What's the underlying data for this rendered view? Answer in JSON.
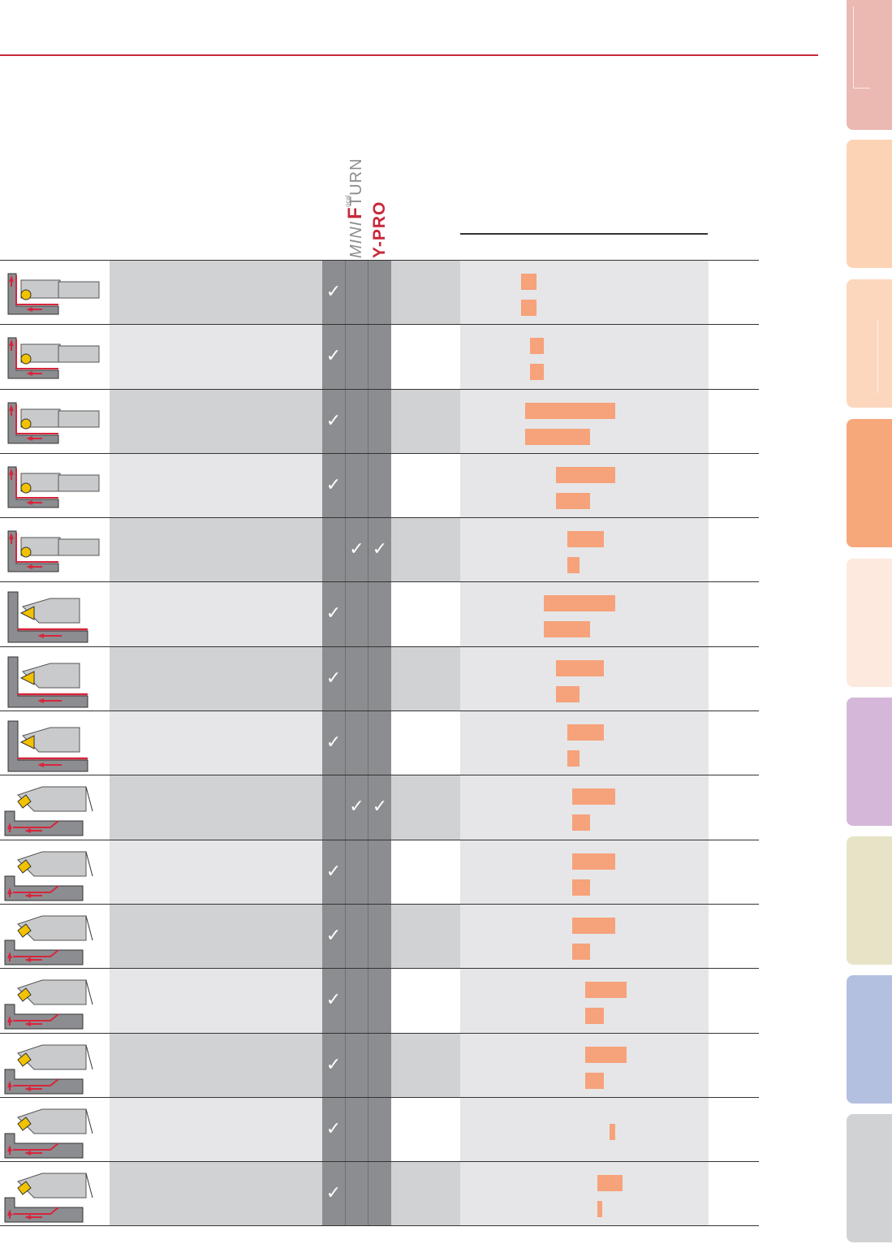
{
  "header": {
    "logo_mini": "MINI",
    "logo_f": "F",
    "logo_turn": "TURN",
    "logo_small": "ocal",
    "logo_ypro": "Y-PRO"
  },
  "colors": {
    "accent_line": "#c8283a",
    "bar": "#f6a27a",
    "check_column": "#8c8d90",
    "check": "#ffffff",
    "row_shade_dark": "#d1d2d4",
    "row_shade_light": "#e6e6e8",
    "profile_red": "#d7263d"
  },
  "check_glyph": "✓",
  "rows": [
    {
      "icon": "corner-boring-tool-icon",
      "checks": [
        true,
        false,
        false
      ],
      "bars": [
        {
          "start": 0.245,
          "end": 0.308
        },
        {
          "start": 0.245,
          "end": 0.308
        }
      ]
    },
    {
      "icon": "corner-boring-tool-icon",
      "checks": [
        true,
        false,
        false
      ],
      "bars": [
        {
          "start": 0.28,
          "end": 0.337
        },
        {
          "start": 0.28,
          "end": 0.337
        }
      ]
    },
    {
      "icon": "corner-boring-tool-icon",
      "checks": [
        true,
        false,
        false
      ],
      "bars": [
        {
          "start": 0.262,
          "end": 0.624
        },
        {
          "start": 0.262,
          "end": 0.523
        }
      ]
    },
    {
      "icon": "corner-boring-tool-icon",
      "checks": [
        true,
        false,
        false
      ],
      "bars": [
        {
          "start": 0.386,
          "end": 0.624
        },
        {
          "start": 0.386,
          "end": 0.523
        }
      ]
    },
    {
      "icon": "corner-boring-tool-icon",
      "checks": [
        false,
        true,
        true
      ],
      "bars": [
        {
          "start": 0.431,
          "end": 0.578
        },
        {
          "start": 0.431,
          "end": 0.48
        }
      ]
    },
    {
      "icon": "bore-turning-tool-icon",
      "checks": [
        true,
        false,
        false
      ],
      "bars": [
        {
          "start": 0.337,
          "end": 0.624
        },
        {
          "start": 0.337,
          "end": 0.523
        }
      ]
    },
    {
      "icon": "bore-turning-tool-icon",
      "checks": [
        true,
        false,
        false
      ],
      "bars": [
        {
          "start": 0.386,
          "end": 0.578
        },
        {
          "start": 0.386,
          "end": 0.48
        }
      ]
    },
    {
      "icon": "bore-turning-tool-icon",
      "checks": [
        true,
        false,
        false
      ],
      "bars": [
        {
          "start": 0.431,
          "end": 0.578
        },
        {
          "start": 0.431,
          "end": 0.48
        }
      ]
    },
    {
      "icon": "profile-boring-tool-icon",
      "checks": [
        false,
        true,
        true
      ],
      "bars": [
        {
          "start": 0.451,
          "end": 0.624
        },
        {
          "start": 0.451,
          "end": 0.523
        }
      ]
    },
    {
      "icon": "profile-boring-tool-icon",
      "checks": [
        true,
        false,
        false
      ],
      "bars": [
        {
          "start": 0.451,
          "end": 0.624
        },
        {
          "start": 0.451,
          "end": 0.523
        }
      ]
    },
    {
      "icon": "profile-boring-tool-icon",
      "checks": [
        true,
        false,
        false
      ],
      "bars": [
        {
          "start": 0.451,
          "end": 0.624
        },
        {
          "start": 0.451,
          "end": 0.523
        }
      ]
    },
    {
      "icon": "profile-boring-tool-icon",
      "checks": [
        true,
        false,
        false
      ],
      "bars": [
        {
          "start": 0.503,
          "end": 0.67
        },
        {
          "start": 0.503,
          "end": 0.578
        }
      ]
    },
    {
      "icon": "profile-boring-tool-icon",
      "checks": [
        true,
        false,
        false
      ],
      "bars": [
        {
          "start": 0.503,
          "end": 0.67
        },
        {
          "start": 0.503,
          "end": 0.578
        }
      ]
    },
    {
      "icon": "profile-boring-tool-icon",
      "checks": [
        true,
        false,
        false
      ],
      "bars": [
        {
          "start": 0.601,
          "end": 0.624
        }
      ]
    },
    {
      "icon": "profile-boring-tool-icon",
      "checks": [
        true,
        false,
        false
      ],
      "bars": [
        {
          "start": 0.552,
          "end": 0.653
        },
        {
          "start": 0.552,
          "end": 0.572
        }
      ]
    }
  ],
  "tabs": [
    {
      "color": "#ebb9b2",
      "mark": true
    },
    {
      "color": "#fcd3b5",
      "mark": false
    },
    {
      "color": "#fcd7bd",
      "mark": true
    },
    {
      "color": "#f7a87b",
      "mark": false
    },
    {
      "color": "#fde9dd",
      "mark": false
    },
    {
      "color": "#d5b8d9",
      "mark": false
    },
    {
      "color": "#e6e3c7",
      "mark": false
    },
    {
      "color": "#b4c0df",
      "mark": false
    },
    {
      "color": "#d1d2d4",
      "mark": false
    }
  ]
}
